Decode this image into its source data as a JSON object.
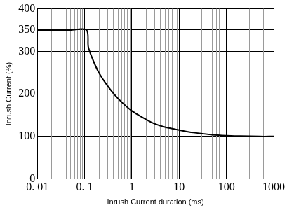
{
  "chart_data": {
    "type": "line",
    "x_label": "Inrush Current duration (ms)",
    "y_label": "Inrush Current (%)",
    "x": [
      0.01,
      0.02,
      0.05,
      0.11,
      0.12,
      0.15,
      0.2,
      0.3,
      0.5,
      1,
      2,
      3,
      5,
      10,
      20,
      50,
      100,
      200,
      500,
      1000
    ],
    "values": [
      350,
      350,
      350,
      350,
      310,
      280,
      250,
      220,
      190,
      160,
      140,
      130,
      122,
      115,
      109,
      104,
      102,
      101,
      100,
      100
    ],
    "color": "#000000",
    "log": "x",
    "xlim": [
      0.01,
      1000
    ],
    "xticks": [
      {
        "value": 0.01,
        "label": "0. 01"
      },
      {
        "value": 0.1,
        "label": "0. 1"
      },
      1,
      10,
      100,
      1000
    ],
    "ylim": [
      0,
      400
    ],
    "yticks": [
      0,
      100,
      200,
      300,
      350,
      400
    ],
    "grid": true
  }
}
